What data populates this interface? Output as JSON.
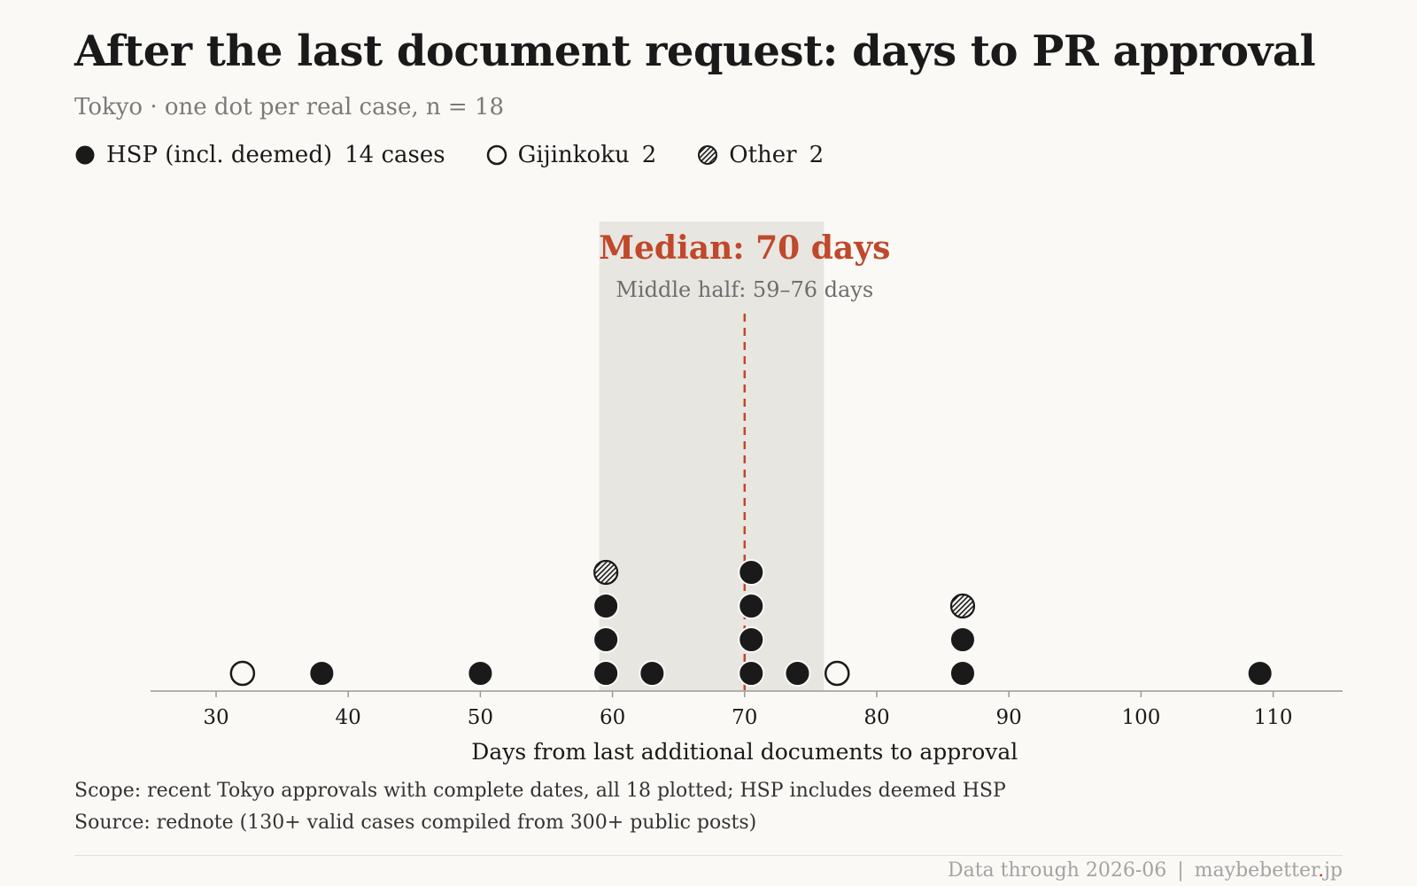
{
  "title": "After the last document request: days to PR approval",
  "subtitle": "Tokyo · one dot per real case, n = 18",
  "legend": [
    {
      "key": "hsp",
      "label": "HSP (incl. deemed)",
      "count": "14 cases",
      "style": "filled"
    },
    {
      "key": "gijinkoku",
      "label": "Gijinkoku",
      "count": "2",
      "style": "hollow"
    },
    {
      "key": "other",
      "label": "Other",
      "count": "2",
      "style": "hatched"
    }
  ],
  "footnotes": {
    "scope": "Scope: recent Tokyo approvals with complete dates, all 18 plotted; HSP includes deemed HSP",
    "source": "Source: rednote (130+ valid cases compiled from 300+ public posts)"
  },
  "footer": {
    "data_through": "Data through 2026-06",
    "separator": "|",
    "site_main": "maybebetter",
    "site_dot": ".",
    "site_tld": "jp"
  },
  "colors": {
    "background": "#faf9f6",
    "ink": "#1a1a1a",
    "accent": "#c0482b",
    "band": "#e8e6e1",
    "muted": "#7a7a7a"
  },
  "chart_data": {
    "type": "scatter",
    "subtype": "dot-strip",
    "xlabel": "Days from last additional documents to approval",
    "xlim": [
      25,
      115
    ],
    "xticks": [
      30,
      40,
      50,
      60,
      70,
      80,
      90,
      100,
      110
    ],
    "median": {
      "value": 70,
      "label": "Median: 70 days"
    },
    "middle_half": {
      "range": [
        59,
        76
      ],
      "label": "Middle half: 59–76 days"
    },
    "points": [
      {
        "x": 32,
        "stack": 1,
        "category": "gijinkoku"
      },
      {
        "x": 38,
        "stack": 1,
        "category": "hsp"
      },
      {
        "x": 50,
        "stack": 1,
        "category": "hsp"
      },
      {
        "x": 59.5,
        "stack": 1,
        "category": "hsp"
      },
      {
        "x": 59.5,
        "stack": 2,
        "category": "hsp"
      },
      {
        "x": 59.5,
        "stack": 3,
        "category": "hsp"
      },
      {
        "x": 59.5,
        "stack": 4,
        "category": "other"
      },
      {
        "x": 63,
        "stack": 1,
        "category": "hsp"
      },
      {
        "x": 70.5,
        "stack": 1,
        "category": "hsp"
      },
      {
        "x": 70.5,
        "stack": 2,
        "category": "hsp"
      },
      {
        "x": 70.5,
        "stack": 3,
        "category": "hsp"
      },
      {
        "x": 70.5,
        "stack": 4,
        "category": "hsp"
      },
      {
        "x": 74,
        "stack": 1,
        "category": "hsp"
      },
      {
        "x": 77,
        "stack": 1,
        "category": "gijinkoku"
      },
      {
        "x": 86.5,
        "stack": 1,
        "category": "hsp"
      },
      {
        "x": 86.5,
        "stack": 2,
        "category": "hsp"
      },
      {
        "x": 86.5,
        "stack": 3,
        "category": "other"
      },
      {
        "x": 109,
        "stack": 1,
        "category": "hsp"
      }
    ]
  }
}
